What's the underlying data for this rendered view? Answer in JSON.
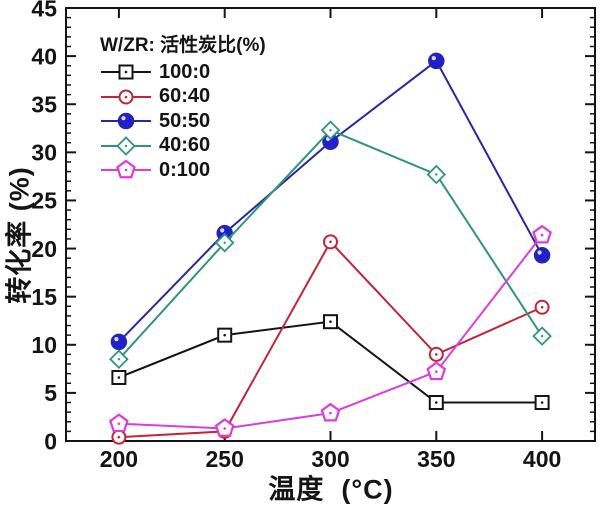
{
  "chart_data": {
    "type": "line",
    "title": "",
    "xlabel": "温度  (°C)",
    "ylabel": "转化率 (%)",
    "x": [
      200,
      250,
      300,
      350,
      400
    ],
    "xlim": [
      175,
      425
    ],
    "ylim": [
      0,
      45
    ],
    "x_ticks": [
      200,
      250,
      300,
      350,
      400
    ],
    "y_ticks": [
      0,
      5,
      10,
      15,
      20,
      25,
      30,
      35,
      40,
      45
    ],
    "y_minor_step": 1,
    "grid": false,
    "frame_color": "#141414",
    "legend": {
      "title": "W/ZR: 活性炭比(%)",
      "position": "top-left-inside"
    },
    "series": [
      {
        "name": "100:0",
        "marker": "square-open",
        "color": "#141414",
        "marker_color": "#141414",
        "values": [
          6.6,
          11.0,
          12.4,
          4.0,
          4.0
        ]
      },
      {
        "name": "60:40",
        "marker": "circle-open",
        "color": "#c22438",
        "marker_color": "#c22438",
        "values": [
          0.4,
          1.0,
          20.7,
          9.0,
          13.9
        ]
      },
      {
        "name": "50:50",
        "marker": "circle-filled",
        "color": "#2828a0",
        "marker_color": "#2020cf",
        "values": [
          10.3,
          21.6,
          31.1,
          39.5,
          19.3
        ]
      },
      {
        "name": "40:60",
        "marker": "diamond-open",
        "color": "#2e9482",
        "marker_color": "#2e9482",
        "values": [
          8.5,
          20.6,
          32.3,
          27.7,
          10.9
        ]
      },
      {
        "name": "0:100",
        "marker": "pentagon-open",
        "color": "#dc3cdc",
        "marker_color": "#dc3cdc",
        "values": [
          1.8,
          1.3,
          2.9,
          7.2,
          21.4
        ]
      }
    ]
  }
}
